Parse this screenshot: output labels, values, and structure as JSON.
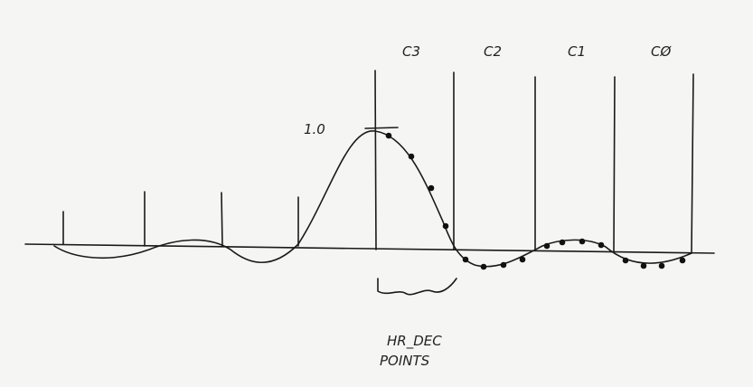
{
  "columns": [
    "C3",
    "C2",
    "C1",
    "CØ"
  ],
  "peak_label": "1.0",
  "note": [
    "HR_DEC",
    "POINTS"
  ]
}
